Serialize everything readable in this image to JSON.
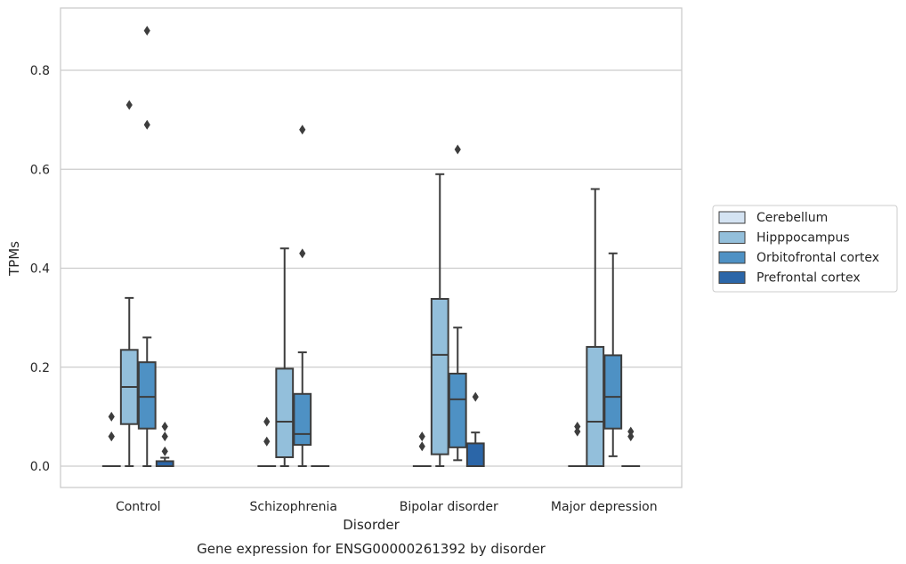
{
  "chart_data": {
    "type": "box",
    "title": "",
    "caption": "Gene expression for ENSG00000261392 by disorder",
    "xlabel": "Disorder",
    "ylabel": "TPMs",
    "ylim": [
      -0.043,
      0.93
    ],
    "yticks": [
      0.0,
      0.2,
      0.4,
      0.6,
      0.8
    ],
    "ytick_labels": [
      "0.0",
      "0.2",
      "0.4",
      "0.6",
      "0.8"
    ],
    "grid": "horizontal",
    "legend_position": "right",
    "categories": [
      "Control",
      "Schizophrenia",
      "Bipolar disorder",
      "Major depression"
    ],
    "series": [
      {
        "name": "Cerebellum",
        "color": "#d4e3f2",
        "boxes": [
          {
            "q1": 0.0,
            "median": 0.0,
            "q3": 0.0,
            "whisker_low": 0.0,
            "whisker_high": 0.0,
            "outliers": [
              0.06,
              0.06,
              0.1
            ]
          },
          {
            "q1": 0.0,
            "median": 0.0,
            "q3": 0.0,
            "whisker_low": 0.0,
            "whisker_high": 0.0,
            "outliers": [
              0.05,
              0.09
            ]
          },
          {
            "q1": 0.0,
            "median": 0.0,
            "q3": 0.0,
            "whisker_low": 0.0,
            "whisker_high": 0.0,
            "outliers": [
              0.04,
              0.06
            ]
          },
          {
            "q1": 0.0,
            "median": 0.0,
            "q3": 0.0,
            "whisker_low": 0.0,
            "whisker_high": 0.0,
            "outliers": [
              0.07,
              0.08
            ]
          }
        ]
      },
      {
        "name": "Hipppocampus",
        "color": "#93bfdb",
        "boxes": [
          {
            "q1": 0.085,
            "median": 0.16,
            "q3": 0.235,
            "whisker_low": 0.0,
            "whisker_high": 0.34,
            "outliers": [
              0.73
            ]
          },
          {
            "q1": 0.018,
            "median": 0.09,
            "q3": 0.197,
            "whisker_low": 0.0,
            "whisker_high": 0.44,
            "outliers": []
          },
          {
            "q1": 0.024,
            "median": 0.225,
            "q3": 0.338,
            "whisker_low": 0.0,
            "whisker_high": 0.59,
            "outliers": []
          },
          {
            "q1": 0.0,
            "median": 0.09,
            "q3": 0.241,
            "whisker_low": 0.0,
            "whisker_high": 0.56,
            "outliers": []
          }
        ]
      },
      {
        "name": "Orbitofrontal cortex",
        "color": "#4e91c4",
        "boxes": [
          {
            "q1": 0.076,
            "median": 0.14,
            "q3": 0.21,
            "whisker_low": 0.0,
            "whisker_high": 0.26,
            "outliers": [
              0.69,
              0.88
            ]
          },
          {
            "q1": 0.043,
            "median": 0.065,
            "q3": 0.146,
            "whisker_low": 0.0,
            "whisker_high": 0.23,
            "outliers": [
              0.68,
              0.43
            ]
          },
          {
            "q1": 0.038,
            "median": 0.135,
            "q3": 0.187,
            "whisker_low": 0.012,
            "whisker_high": 0.28,
            "outliers": [
              0.64
            ]
          },
          {
            "q1": 0.076,
            "median": 0.14,
            "q3": 0.224,
            "whisker_low": 0.02,
            "whisker_high": 0.43,
            "outliers": []
          }
        ]
      },
      {
        "name": "Prefrontal cortex",
        "color": "#2b66a8",
        "boxes": [
          {
            "q1": 0.0,
            "median": 0.0,
            "q3": 0.01,
            "whisker_low": 0.0,
            "whisker_high": 0.017,
            "outliers": [
              0.03,
              0.06,
              0.08
            ]
          },
          {
            "q1": 0.0,
            "median": 0.0,
            "q3": 0.0,
            "whisker_low": 0.0,
            "whisker_high": 0.0,
            "outliers": []
          },
          {
            "q1": 0.0,
            "median": 0.0,
            "q3": 0.046,
            "whisker_low": 0.0,
            "whisker_high": 0.068,
            "outliers": [
              0.14
            ]
          },
          {
            "q1": 0.0,
            "median": 0.0,
            "q3": 0.0,
            "whisker_low": 0.0,
            "whisker_high": 0.0,
            "outliers": [
              0.06,
              0.07
            ]
          }
        ]
      }
    ]
  }
}
